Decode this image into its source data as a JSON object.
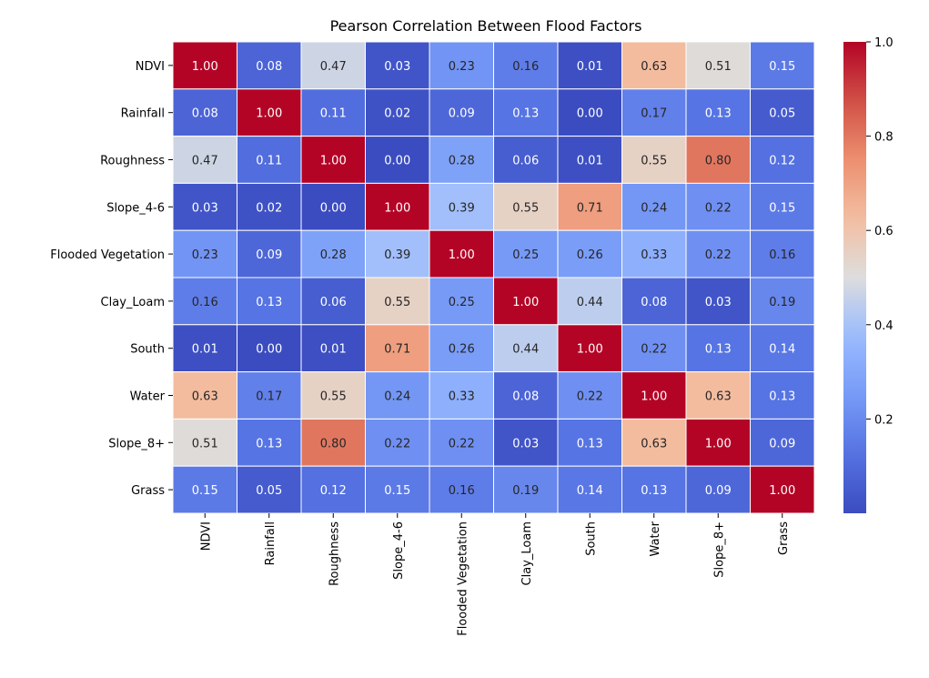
{
  "chart_data": {
    "type": "heatmap",
    "title": "Pearson Correlation Between Flood Factors",
    "row_labels": [
      "NDVI",
      "Rainfall",
      "Roughness",
      "Slope_4-6",
      "Flooded Vegetation",
      "Clay_Loam",
      "South",
      "Water",
      "Slope_8+",
      "Grass"
    ],
    "col_labels": [
      "NDVI",
      "Rainfall",
      "Roughness",
      "Slope_4-6",
      "Flooded Vegetation",
      "Clay_Loam",
      "South",
      "Water",
      "Slope_8+",
      "Grass"
    ],
    "values": [
      [
        1.0,
        0.08,
        0.47,
        0.03,
        0.23,
        0.16,
        0.01,
        0.63,
        0.51,
        0.15
      ],
      [
        0.08,
        1.0,
        0.11,
        0.02,
        0.09,
        0.13,
        0.0,
        0.17,
        0.13,
        0.05
      ],
      [
        0.47,
        0.11,
        1.0,
        0.0,
        0.28,
        0.06,
        0.01,
        0.55,
        0.8,
        0.12
      ],
      [
        0.03,
        0.02,
        0.0,
        1.0,
        0.39,
        0.55,
        0.71,
        0.24,
        0.22,
        0.15
      ],
      [
        0.23,
        0.09,
        0.28,
        0.39,
        1.0,
        0.25,
        0.26,
        0.33,
        0.22,
        0.16
      ],
      [
        0.16,
        0.13,
        0.06,
        0.55,
        0.25,
        1.0,
        0.44,
        0.08,
        0.03,
        0.19
      ],
      [
        0.01,
        0.0,
        0.01,
        0.71,
        0.26,
        0.44,
        1.0,
        0.22,
        0.13,
        0.14
      ],
      [
        0.63,
        0.17,
        0.55,
        0.24,
        0.33,
        0.08,
        0.22,
        1.0,
        0.63,
        0.13
      ],
      [
        0.51,
        0.13,
        0.8,
        0.22,
        0.22,
        0.03,
        0.13,
        0.63,
        1.0,
        0.09
      ],
      [
        0.15,
        0.05,
        0.12,
        0.15,
        0.16,
        0.19,
        0.14,
        0.13,
        0.09,
        1.0
      ]
    ],
    "value_format": "2 decimals",
    "colormap": "coolwarm",
    "colorbar": {
      "range": [
        0.0,
        1.0
      ],
      "ticks": [
        0.2,
        0.4,
        0.6,
        0.8,
        1.0
      ],
      "tick_labels": [
        "0.2",
        "0.4",
        "0.6",
        "0.8",
        "1.0"
      ]
    },
    "grid": false,
    "cell_border_color": "#ffffff",
    "annotated": true
  }
}
